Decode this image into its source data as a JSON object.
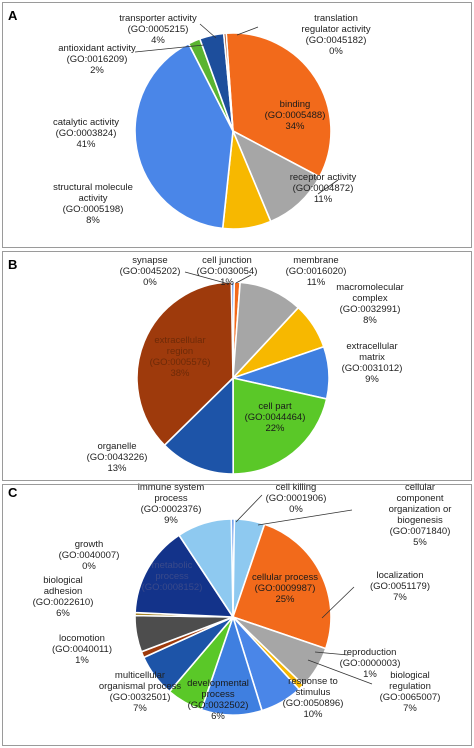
{
  "chart_data": [
    {
      "type": "pie",
      "panel_label": "A",
      "slices": [
        {
          "name": "binding",
          "go": "GO:0005488",
          "value": 34,
          "pct_label": "34%",
          "color": "#f26a1b"
        },
        {
          "name": "receptor activity",
          "go": "GO:0004872",
          "value": 11,
          "pct_label": "11%",
          "color": "#a6a6a6"
        },
        {
          "name": "structural molecule activity",
          "go": "GO:0005198",
          "value": 8,
          "pct_label": "8%",
          "color": "#f7b800"
        },
        {
          "name": "catalytic activity",
          "go": "GO:0003824",
          "value": 41,
          "pct_label": "41%",
          "color": "#4a86e8"
        },
        {
          "name": "antioxidant activity",
          "go": "GO:0016209",
          "value": 2,
          "pct_label": "2%",
          "color": "#5ab431"
        },
        {
          "name": "transporter activity",
          "go": "GO:0005215",
          "value": 4,
          "pct_label": "4%",
          "color": "#1d4e9c"
        },
        {
          "name": "translation regulator activity",
          "go": "GO:0045182",
          "value": 0.4,
          "pct_label": "0%",
          "color": "#9e3a0c"
        }
      ],
      "labels": [
        {
          "lines": [
            "transporter activity",
            "(GO:0005215)",
            "4%"
          ]
        },
        {
          "lines": [
            "translation",
            "regulator activity",
            "(GO:0045182)",
            "0%"
          ]
        },
        {
          "lines": [
            "antioxidant activity",
            "(GO:0016209)",
            "2%"
          ]
        },
        {
          "lines": [
            "binding",
            "(GO:0005488)",
            "34%"
          ]
        },
        {
          "lines": [
            "catalytic activity",
            "(GO:0003824)",
            "41%"
          ]
        },
        {
          "lines": [
            "receptor activity",
            "(GO:0004872)",
            "11%"
          ]
        },
        {
          "lines": [
            "structural molecule",
            "activity",
            "(GO:0005198)",
            "8%"
          ]
        }
      ]
    },
    {
      "type": "pie",
      "panel_label": "B",
      "slices": [
        {
          "name": "synapse",
          "go": "GO:0045202",
          "value": 0.5,
          "pct_label": "0%",
          "color": "#4a86e8"
        },
        {
          "name": "cell junction",
          "go": "GO:0030054",
          "value": 1,
          "pct_label": "1%",
          "color": "#f26a1b"
        },
        {
          "name": "membrane",
          "go": "GO:0016020",
          "value": 11,
          "pct_label": "11%",
          "color": "#a6a6a6"
        },
        {
          "name": "macromolecular complex",
          "go": "GO:0032991",
          "value": 8,
          "pct_label": "8%",
          "color": "#f7b800"
        },
        {
          "name": "extracellular matrix",
          "go": "GO:0031012",
          "value": 9,
          "pct_label": "9%",
          "color": "#3f7fe0"
        },
        {
          "name": "cell part",
          "go": "GO:0044464",
          "value": 22,
          "pct_label": "22%",
          "color": "#5ac828"
        },
        {
          "name": "organelle",
          "go": "GO:0043226",
          "value": 13,
          "pct_label": "13%",
          "color": "#1d54a8"
        },
        {
          "name": "extracellular region",
          "go": "GO:0005576",
          "value": 38,
          "pct_label": "38%",
          "color": "#9e3a0c"
        }
      ],
      "labels": [
        {
          "lines": [
            "synapse",
            "(GO:0045202)",
            "0%"
          ]
        },
        {
          "lines": [
            "cell junction",
            "(GO:0030054)",
            "1%"
          ]
        },
        {
          "lines": [
            "membrane",
            "(GO:0016020)",
            "11%"
          ]
        },
        {
          "lines": [
            "macromolecular",
            "complex",
            "(GO:0032991)",
            "8%"
          ]
        },
        {
          "lines": [
            "extracellular",
            "region",
            "(GO:0005576)",
            "38%"
          ]
        },
        {
          "lines": [
            "extracellular",
            "matrix",
            "(GO:0031012)",
            "9%"
          ]
        },
        {
          "lines": [
            "cell part",
            "(GO:0044464)",
            "22%"
          ]
        },
        {
          "lines": [
            "organelle",
            "(GO:0043226)",
            "13%"
          ]
        }
      ]
    },
    {
      "type": "pie",
      "panel_label": "C",
      "slices": [
        {
          "name": "cell killing",
          "go": "GO:0001906",
          "value": 0.5,
          "pct_label": "0%",
          "color": "#4a86e8"
        },
        {
          "name": "cellular component organization or biogenesis",
          "go": "GO:0071840",
          "value": 5,
          "pct_label": "5%",
          "color": "#8ec9f0"
        },
        {
          "name": "cellular process",
          "go": "GO:0009987",
          "value": 25,
          "pct_label": "25%",
          "color": "#f26a1b"
        },
        {
          "name": "localization",
          "go": "GO:0051179",
          "value": 7,
          "pct_label": "7%",
          "color": "#a6a6a6"
        },
        {
          "name": "reproduction",
          "go": "GO:0000003",
          "value": 1,
          "pct_label": "1%",
          "color": "#f7b800"
        },
        {
          "name": "biological regulation",
          "go": "GO:0065007",
          "value": 7,
          "pct_label": "7%",
          "color": "#4a86e8"
        },
        {
          "name": "response to stimulus",
          "go": "GO:0050896",
          "value": 10,
          "pct_label": "10%",
          "color": "#3f7fe0"
        },
        {
          "name": "developmental process",
          "go": "GO:0032502",
          "value": 6,
          "pct_label": "6%",
          "color": "#5ac828"
        },
        {
          "name": "multicellular organismal process",
          "go": "GO:0032501",
          "value": 7,
          "pct_label": "7%",
          "color": "#1d54a8"
        },
        {
          "name": "locomotion",
          "go": "GO:0040011",
          "value": 1,
          "pct_label": "1%",
          "color": "#9e3a0c"
        },
        {
          "name": "biological adhesion",
          "go": "GO:0022610",
          "value": 6,
          "pct_label": "6%",
          "color": "#4d4d4d"
        },
        {
          "name": "growth",
          "go": "GO:0040007",
          "value": 0.5,
          "pct_label": "0%",
          "color": "#a6862a"
        },
        {
          "name": "metabolic process",
          "go": "GO:0008152",
          "value": 15,
          "pct_label": "",
          "color": "#13338a"
        },
        {
          "name": "immune system process",
          "go": "GO:0002376",
          "value": 9,
          "pct_label": "9%",
          "color": "#8ec9f0"
        }
      ],
      "labels": [
        {
          "lines": [
            "immune system",
            "process",
            "(GO:0002376)",
            "9%"
          ]
        },
        {
          "lines": [
            "cell killing",
            "(GO:0001906)",
            "0%"
          ]
        },
        {
          "lines": [
            "cellular",
            "component",
            "organization or",
            "biogenesis",
            "(GO:0071840)",
            "5%"
          ]
        },
        {
          "lines": [
            "growth",
            "(GO:0040007)",
            "0%"
          ]
        },
        {
          "lines": [
            "metabolic",
            "process",
            "(GO:0008152)"
          ]
        },
        {
          "lines": [
            "cellular process",
            "(GO:0009987)",
            "25%"
          ]
        },
        {
          "lines": [
            "localization",
            "(GO:0051179)",
            "7%"
          ]
        },
        {
          "lines": [
            "biological",
            "adhesion",
            "(GO:0022610)",
            "6%"
          ]
        },
        {
          "lines": [
            "locomotion",
            "(GO:0040011)",
            "1%"
          ]
        },
        {
          "lines": [
            "reproduction",
            "(GO:0000003)",
            "1%"
          ]
        },
        {
          "lines": [
            "multicellular",
            "organismal process",
            "(GO:0032501)",
            "7%"
          ]
        },
        {
          "lines": [
            "developmental",
            "process",
            "(GO:0032502)",
            "6%"
          ]
        },
        {
          "lines": [
            "response to",
            "stimulus",
            "(GO:0050896)",
            "10%"
          ]
        },
        {
          "lines": [
            "biological",
            "regulation",
            "(GO:0065007)",
            "7%"
          ]
        }
      ]
    }
  ]
}
